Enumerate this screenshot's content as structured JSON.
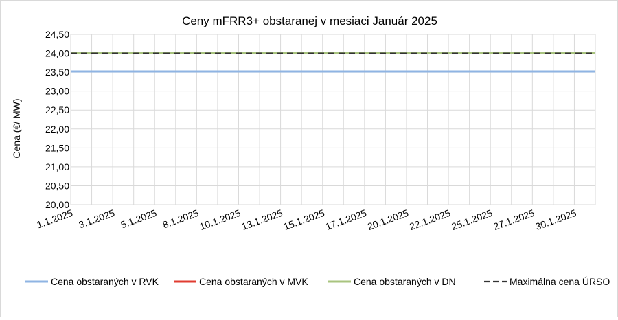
{
  "chart_data": {
    "type": "line",
    "title": "Ceny mFRR3+ obstaranej v mesiaci Január 2025",
    "xlabel": "",
    "ylabel": "Cena (€/ MW)",
    "ylim": [
      20,
      24.5
    ],
    "y_ticks": [
      "20,00",
      "20,50",
      "21,00",
      "21,50",
      "22,00",
      "22,50",
      "23,00",
      "23,50",
      "24,00",
      "24,50"
    ],
    "x_tick_labels": [
      "1.1.2025",
      "3.1.2025",
      "5.1.2025",
      "8.1.2025",
      "10.1.2025",
      "13.1.2025",
      "15.1.2025",
      "17.1.2025",
      "20.1.2025",
      "22.1.2025",
      "25.1.2025",
      "27.1.2025",
      "30.1.2025"
    ],
    "x_tick_index": [
      0,
      2,
      4,
      6,
      8,
      10,
      12,
      14,
      16,
      18,
      20,
      22,
      24
    ],
    "point_count": 26,
    "grid": true,
    "legend_position": "bottom",
    "series": [
      {
        "name": "Cena obstaraných v RVK",
        "color": "#8fb4e3",
        "dash": "solid",
        "values": [
          23.52,
          23.52,
          23.52,
          23.52,
          23.52,
          23.52,
          23.52,
          23.52,
          23.52,
          23.52,
          23.52,
          23.52,
          23.52,
          23.52,
          23.52,
          23.52,
          23.52,
          23.52,
          23.52,
          23.52,
          23.52,
          23.52,
          23.52,
          23.52,
          23.52,
          23.52
        ]
      },
      {
        "name": "Cena obstaraných v MVK",
        "color": "#e03c31",
        "dash": "solid",
        "values": []
      },
      {
        "name": "Cena obstaraných v DN",
        "color": "#a9c47f",
        "dash": "solid",
        "values": [
          24.0,
          24.0,
          24.0,
          24.0,
          24.0,
          24.0,
          24.0,
          24.0,
          24.0,
          24.0,
          24.0,
          24.0,
          24.0,
          24.0,
          24.0,
          24.0,
          24.0,
          24.0,
          24.0,
          24.0,
          24.0,
          24.0,
          24.0,
          24.0,
          24.0,
          24.0
        ]
      },
      {
        "name": "Maximálna cena ÚRSO",
        "color": "#333333",
        "dash": "dashed",
        "values": [
          24.0,
          24.0,
          24.0,
          24.0,
          24.0,
          24.0,
          24.0,
          24.0,
          24.0,
          24.0,
          24.0,
          24.0,
          24.0,
          24.0,
          24.0,
          24.0,
          24.0,
          24.0,
          24.0,
          24.0,
          24.0,
          24.0,
          24.0,
          24.0,
          24.0,
          24.0
        ]
      }
    ]
  }
}
